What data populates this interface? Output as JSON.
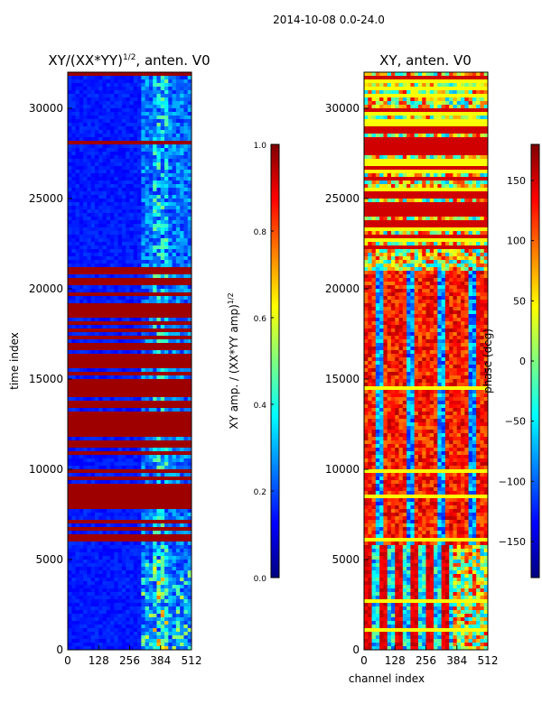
{
  "suptitle": "2014-10-08 0.0-24.0",
  "colors": {
    "jet": [
      "#00007f",
      "#0000ff",
      "#007fff",
      "#00ffff",
      "#7fff7f",
      "#ffff00",
      "#ff7f00",
      "#ff0000",
      "#7f0000"
    ]
  },
  "chart_data": [
    {
      "type": "heatmap",
      "title": "XY/(XX*YY)",
      "title_sup": "1/2",
      "title_suffix": ", anten. V0",
      "xlabel": "",
      "ylabel": "time index",
      "xlim": [
        0,
        512
      ],
      "ylim": [
        0,
        32000
      ],
      "xticks": [
        0,
        128,
        256,
        384,
        512
      ],
      "yticks": [
        0,
        5000,
        10000,
        15000,
        20000,
        25000,
        30000
      ],
      "colorbar": {
        "label": "XY amp. / (XX*YY amp)",
        "label_sup": "1/2",
        "range": [
          0.0,
          1.0
        ],
        "ticks": [
          "0.0",
          "0.2",
          "0.4",
          "0.6",
          "0.8",
          "1.0"
        ]
      }
    },
    {
      "type": "heatmap",
      "title": "XY, anten. V0",
      "xlabel": "channel index",
      "ylabel": "",
      "xlim": [
        0,
        512
      ],
      "ylim": [
        0,
        32000
      ],
      "xticks": [
        0,
        128,
        256,
        384,
        512
      ],
      "yticks": [
        0,
        5000,
        10000,
        15000,
        20000,
        25000,
        30000
      ],
      "colorbar": {
        "label": "phase (deg)",
        "range": [
          -180,
          180
        ],
        "ticks": [
          "−150",
          "−100",
          "−50",
          "0",
          "50",
          "100",
          "150"
        ]
      }
    }
  ]
}
